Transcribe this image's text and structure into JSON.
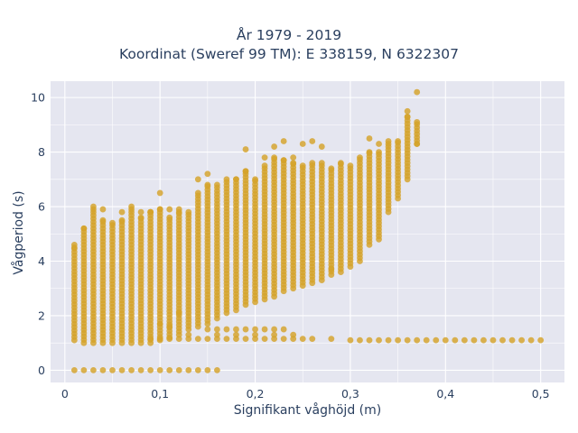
{
  "chart_data": {
    "type": "scatter",
    "title": "År 1979 - 2019",
    "subtitle": "Koordinat (Sweref 99 TM): E 338159, N 6322307",
    "xlabel": "Signifikant våghöjd (m)",
    "ylabel": "Vågperiod (s)",
    "xlim": [
      -0.015,
      0.525
    ],
    "ylim": [
      -0.45,
      10.6
    ],
    "xticks": [
      0,
      0.1,
      0.2,
      0.3,
      0.4,
      0.5
    ],
    "xtick_labels": [
      "0",
      "0,1",
      "0,2",
      "0,3",
      "0,4",
      "0,5"
    ],
    "yticks": [
      0,
      2,
      4,
      6,
      8,
      10
    ],
    "ytick_labels": [
      "0",
      "2",
      "4",
      "6",
      "8",
      "10"
    ],
    "grid": true,
    "marker_color": "#d4a22a",
    "background_color": "#e5e6f0",
    "columns": [
      {
        "x": 0.01,
        "low": 1.1,
        "high": 4.5
      },
      {
        "x": 0.02,
        "low": 1.0,
        "high": 5.2
      },
      {
        "x": 0.03,
        "low": 1.0,
        "high": 5.9
      },
      {
        "x": 0.04,
        "low": 1.0,
        "high": 5.5
      },
      {
        "x": 0.05,
        "low": 1.0,
        "high": 5.4
      },
      {
        "x": 0.06,
        "low": 1.0,
        "high": 5.5
      },
      {
        "x": 0.07,
        "low": 1.0,
        "high": 5.9
      },
      {
        "x": 0.08,
        "low": 1.0,
        "high": 5.6
      },
      {
        "x": 0.09,
        "low": 1.0,
        "high": 5.8
      },
      {
        "x": 0.1,
        "low": 1.1,
        "high": 5.9
      },
      {
        "x": 0.11,
        "low": 1.2,
        "high": 5.6
      },
      {
        "x": 0.12,
        "low": 1.3,
        "high": 5.8
      },
      {
        "x": 0.13,
        "low": 1.5,
        "high": 5.8
      },
      {
        "x": 0.14,
        "low": 1.6,
        "high": 6.5
      },
      {
        "x": 0.15,
        "low": 1.7,
        "high": 6.8
      },
      {
        "x": 0.16,
        "low": 1.9,
        "high": 6.8
      },
      {
        "x": 0.17,
        "low": 2.1,
        "high": 7.0
      },
      {
        "x": 0.18,
        "low": 2.2,
        "high": 7.0
      },
      {
        "x": 0.19,
        "low": 2.4,
        "high": 7.3
      },
      {
        "x": 0.2,
        "low": 2.5,
        "high": 7.0
      },
      {
        "x": 0.21,
        "low": 2.6,
        "high": 7.5
      },
      {
        "x": 0.22,
        "low": 2.7,
        "high": 7.8
      },
      {
        "x": 0.23,
        "low": 2.9,
        "high": 7.7
      },
      {
        "x": 0.24,
        "low": 3.0,
        "high": 7.6
      },
      {
        "x": 0.25,
        "low": 3.1,
        "high": 7.5
      },
      {
        "x": 0.26,
        "low": 3.2,
        "high": 7.6
      },
      {
        "x": 0.27,
        "low": 3.3,
        "high": 7.6
      },
      {
        "x": 0.28,
        "low": 3.5,
        "high": 7.4
      },
      {
        "x": 0.29,
        "low": 3.6,
        "high": 7.6
      },
      {
        "x": 0.3,
        "low": 3.8,
        "high": 7.5
      },
      {
        "x": 0.31,
        "low": 4.0,
        "high": 7.8
      },
      {
        "x": 0.32,
        "low": 4.6,
        "high": 8.0
      },
      {
        "x": 0.33,
        "low": 4.8,
        "high": 8.0
      },
      {
        "x": 0.34,
        "low": 5.8,
        "high": 8.3
      },
      {
        "x": 0.35,
        "low": 6.3,
        "high": 8.4
      },
      {
        "x": 0.36,
        "low": 7.0,
        "high": 9.3
      },
      {
        "x": 0.37,
        "low": 8.3,
        "high": 9.1
      }
    ],
    "outliers": [
      {
        "x": 0.01,
        "y": 4.6
      },
      {
        "x": 0.03,
        "y": 6.0
      },
      {
        "x": 0.04,
        "y": 5.9
      },
      {
        "x": 0.06,
        "y": 5.8
      },
      {
        "x": 0.07,
        "y": 6.0
      },
      {
        "x": 0.08,
        "y": 5.8
      },
      {
        "x": 0.09,
        "y": 5.8
      },
      {
        "x": 0.1,
        "y": 6.5
      },
      {
        "x": 0.11,
        "y": 5.9
      },
      {
        "x": 0.12,
        "y": 5.9
      },
      {
        "x": 0.14,
        "y": 7.0
      },
      {
        "x": 0.15,
        "y": 7.2
      },
      {
        "x": 0.19,
        "y": 7.3
      },
      {
        "x": 0.19,
        "y": 8.1
      },
      {
        "x": 0.21,
        "y": 7.8
      },
      {
        "x": 0.22,
        "y": 8.2
      },
      {
        "x": 0.23,
        "y": 8.4
      },
      {
        "x": 0.24,
        "y": 7.8
      },
      {
        "x": 0.25,
        "y": 8.3
      },
      {
        "x": 0.26,
        "y": 8.4
      },
      {
        "x": 0.27,
        "y": 8.2
      },
      {
        "x": 0.28,
        "y": 3.7
      },
      {
        "x": 0.32,
        "y": 8.5
      },
      {
        "x": 0.33,
        "y": 8.3
      },
      {
        "x": 0.34,
        "y": 8.4
      },
      {
        "x": 0.36,
        "y": 9.5
      },
      {
        "x": 0.37,
        "y": 10.2
      },
      {
        "x": 0.37,
        "y": 8.3
      },
      {
        "x": 0.11,
        "y": 1.6
      },
      {
        "x": 0.13,
        "y": 1.3
      },
      {
        "x": 0.12,
        "y": 2.1
      },
      {
        "x": 0.1,
        "y": 1.7
      }
    ],
    "low_band": [
      {
        "x": 0.09,
        "y": 1.15
      },
      {
        "x": 0.1,
        "y": 1.15
      },
      {
        "x": 0.11,
        "y": 1.15
      },
      {
        "x": 0.12,
        "y": 1.15
      },
      {
        "x": 0.13,
        "y": 1.15
      },
      {
        "x": 0.14,
        "y": 1.15
      },
      {
        "x": 0.15,
        "y": 1.15
      },
      {
        "x": 0.16,
        "y": 1.15
      },
      {
        "x": 0.17,
        "y": 1.15
      },
      {
        "x": 0.18,
        "y": 1.15
      },
      {
        "x": 0.19,
        "y": 1.15
      },
      {
        "x": 0.2,
        "y": 1.15
      },
      {
        "x": 0.21,
        "y": 1.15
      },
      {
        "x": 0.22,
        "y": 1.15
      },
      {
        "x": 0.23,
        "y": 1.15
      },
      {
        "x": 0.24,
        "y": 1.15
      },
      {
        "x": 0.25,
        "y": 1.15
      },
      {
        "x": 0.26,
        "y": 1.15
      },
      {
        "x": 0.28,
        "y": 1.15
      },
      {
        "x": 0.3,
        "y": 1.1
      },
      {
        "x": 0.31,
        "y": 1.1
      },
      {
        "x": 0.32,
        "y": 1.1
      },
      {
        "x": 0.33,
        "y": 1.1
      },
      {
        "x": 0.34,
        "y": 1.1
      },
      {
        "x": 0.35,
        "y": 1.1
      },
      {
        "x": 0.36,
        "y": 1.1
      },
      {
        "x": 0.37,
        "y": 1.1
      },
      {
        "x": 0.38,
        "y": 1.1
      },
      {
        "x": 0.39,
        "y": 1.1
      },
      {
        "x": 0.4,
        "y": 1.1
      },
      {
        "x": 0.41,
        "y": 1.1
      },
      {
        "x": 0.42,
        "y": 1.1
      },
      {
        "x": 0.43,
        "y": 1.1
      },
      {
        "x": 0.44,
        "y": 1.1
      },
      {
        "x": 0.45,
        "y": 1.1
      },
      {
        "x": 0.46,
        "y": 1.1
      },
      {
        "x": 0.47,
        "y": 1.1
      },
      {
        "x": 0.48,
        "y": 1.1
      },
      {
        "x": 0.49,
        "y": 1.1
      },
      {
        "x": 0.5,
        "y": 1.1
      },
      {
        "x": 0.15,
        "y": 1.5
      },
      {
        "x": 0.16,
        "y": 1.5
      },
      {
        "x": 0.17,
        "y": 1.5
      },
      {
        "x": 0.18,
        "y": 1.5
      },
      {
        "x": 0.19,
        "y": 1.5
      },
      {
        "x": 0.2,
        "y": 1.5
      },
      {
        "x": 0.21,
        "y": 1.5
      },
      {
        "x": 0.22,
        "y": 1.5
      },
      {
        "x": 0.23,
        "y": 1.5
      },
      {
        "x": 0.16,
        "y": 1.3
      },
      {
        "x": 0.18,
        "y": 1.3
      },
      {
        "x": 0.2,
        "y": 1.3
      },
      {
        "x": 0.22,
        "y": 1.3
      },
      {
        "x": 0.24,
        "y": 1.3
      }
    ],
    "zero_row": [
      {
        "x": 0.01,
        "y": 0
      },
      {
        "x": 0.02,
        "y": 0
      },
      {
        "x": 0.03,
        "y": 0
      },
      {
        "x": 0.04,
        "y": 0
      },
      {
        "x": 0.05,
        "y": 0
      },
      {
        "x": 0.06,
        "y": 0
      },
      {
        "x": 0.07,
        "y": 0
      },
      {
        "x": 0.08,
        "y": 0
      },
      {
        "x": 0.09,
        "y": 0
      },
      {
        "x": 0.1,
        "y": 0
      },
      {
        "x": 0.11,
        "y": 0
      },
      {
        "x": 0.12,
        "y": 0
      },
      {
        "x": 0.13,
        "y": 0
      },
      {
        "x": 0.14,
        "y": 0
      },
      {
        "x": 0.15,
        "y": 0
      },
      {
        "x": 0.16,
        "y": 0
      }
    ]
  }
}
